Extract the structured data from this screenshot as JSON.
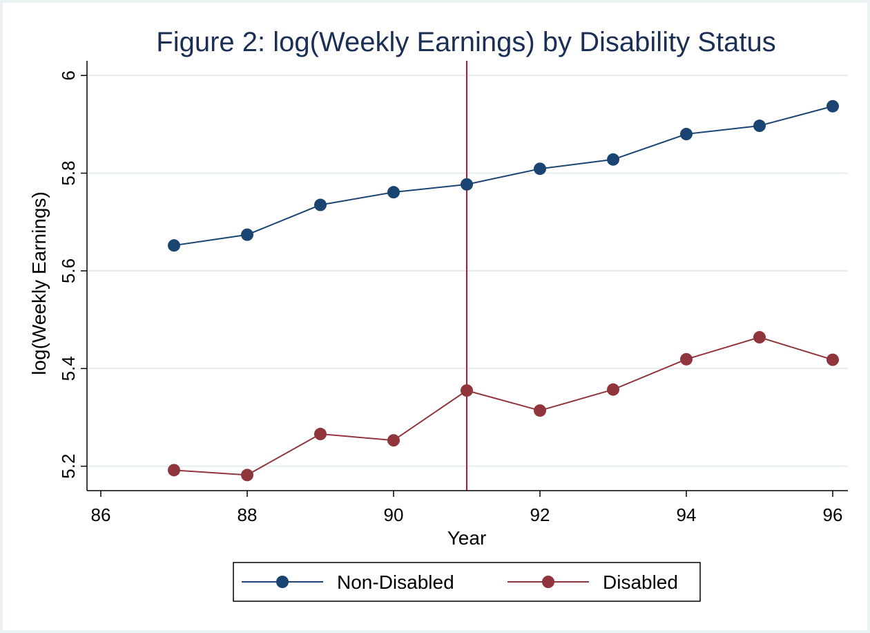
{
  "chart_data": {
    "type": "line",
    "title": "Figure 2: log(Weekly Earnings) by Disability Status",
    "xlabel": "Year",
    "ylabel": "log(Weekly Earnings)",
    "xlim": [
      86,
      96
    ],
    "ylim": [
      5.15,
      6.03
    ],
    "xticks": [
      86,
      88,
      90,
      92,
      94,
      96
    ],
    "yticks": [
      5.2,
      5.4,
      5.6,
      5.8,
      6
    ],
    "xtick_labels": [
      "86",
      "88",
      "90",
      "92",
      "94",
      "96"
    ],
    "ytick_labels": [
      "5.2",
      "5.4",
      "5.6",
      "5.8",
      "6"
    ],
    "grid": "horizontal",
    "reference_line_x": 91,
    "legend_position": "bottom",
    "x": [
      87,
      88,
      89,
      90,
      91,
      92,
      93,
      94,
      95,
      96
    ],
    "series": [
      {
        "name": "Non-Disabled",
        "color": "#1a4472",
        "values": [
          5.652,
          5.674,
          5.735,
          5.761,
          5.777,
          5.809,
          5.828,
          5.88,
          5.897,
          5.937
        ]
      },
      {
        "name": "Disabled",
        "color": "#90353b",
        "values": [
          5.192,
          5.182,
          5.266,
          5.253,
          5.355,
          5.314,
          5.357,
          5.419,
          5.464,
          5.418
        ]
      }
    ],
    "colors": {
      "reference_line": "#c8102e",
      "grid": "#e4ecee",
      "title": "#1b2f55",
      "outer_background": "#eaf2f3"
    }
  }
}
